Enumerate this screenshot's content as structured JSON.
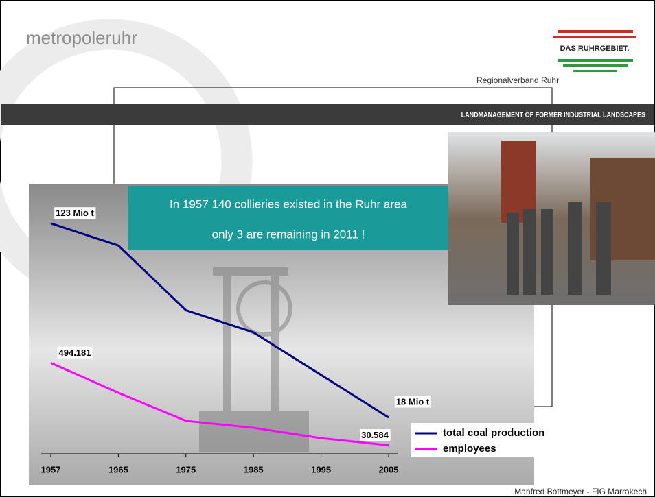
{
  "header": {
    "logo": "metropoleruhr",
    "brand": "DAS RUHRGEBIET.",
    "organization": "Regionalverband Ruhr"
  },
  "banner": "LANDMANAGEMENT OF FORMER INDUSTRIAL LANDSCAPES",
  "footer": "Manfred Bottmeyer - FIG Marrakech",
  "chart_data": {
    "type": "line",
    "annotations": [
      "In 1957 140 collieries existed in the Ruhr area",
      "only 3 are remaining in 2011 !"
    ],
    "categories": [
      "1957",
      "1965",
      "1975",
      "1985",
      "1995",
      "2005"
    ],
    "ylim": [
      0,
      150
    ],
    "y2lim": [
      0,
      1560000
    ],
    "series": [
      {
        "name": "total coal production",
        "color": "#000080",
        "values": [
          123,
          111,
          76,
          64,
          41,
          18
        ],
        "value_labels": [
          "123 Mio t",
          null,
          null,
          null,
          null,
          "18 Mio t"
        ]
      },
      {
        "name": "employees",
        "color": "#ff00ff",
        "axis": "y2",
        "values": [
          494181,
          326000,
          168000,
          129000,
          71000,
          30584
        ],
        "value_labels": [
          "494.181",
          null,
          null,
          null,
          null,
          "30.584"
        ]
      }
    ],
    "legend": "lower right"
  }
}
